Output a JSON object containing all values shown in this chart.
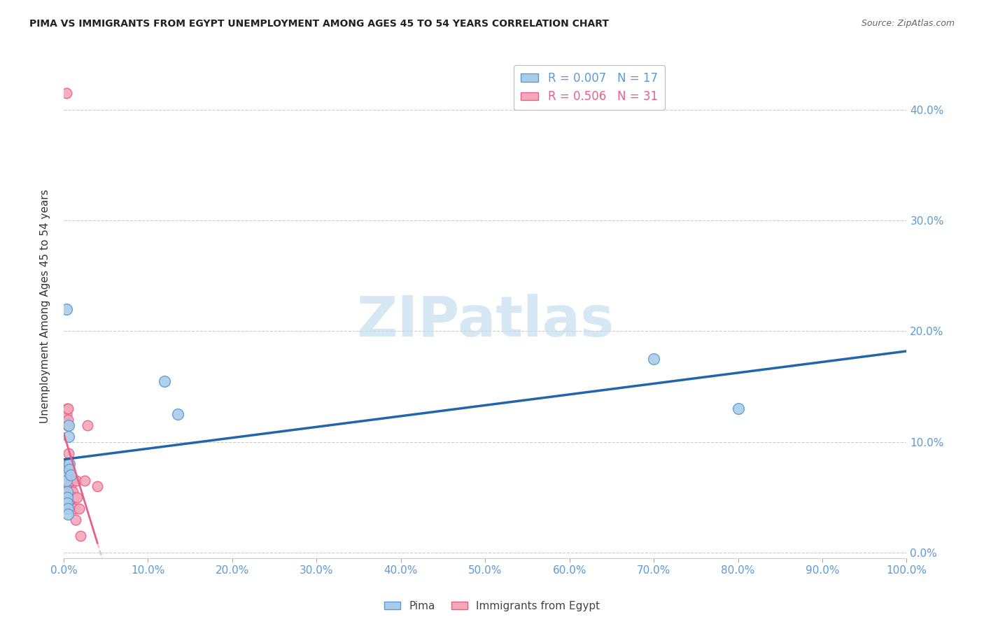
{
  "title": "PIMA VS IMMIGRANTS FROM EGYPT UNEMPLOYMENT AMONG AGES 45 TO 54 YEARS CORRELATION CHART",
  "source": "Source: ZipAtlas.com",
  "ylabel": "Unemployment Among Ages 45 to 54 years",
  "xlim": [
    0,
    1.0
  ],
  "ylim": [
    -0.005,
    0.45
  ],
  "xticks": [
    0.0,
    0.1,
    0.2,
    0.3,
    0.4,
    0.5,
    0.6,
    0.7,
    0.8,
    0.9,
    1.0
  ],
  "yticks": [
    0.0,
    0.1,
    0.2,
    0.3,
    0.4
  ],
  "pima_R": 0.007,
  "pima_N": 17,
  "egypt_R": 0.506,
  "egypt_N": 31,
  "pima_color": "#aacce8",
  "egypt_color": "#f4a8b8",
  "pima_edge_color": "#5b9bd5",
  "egypt_edge_color": "#e8608a",
  "pima_points_x": [
    0.003,
    0.003,
    0.003,
    0.004,
    0.004,
    0.004,
    0.005,
    0.005,
    0.006,
    0.006,
    0.007,
    0.007,
    0.008,
    0.12,
    0.135,
    0.7,
    0.8
  ],
  "pima_points_y": [
    0.22,
    0.07,
    0.065,
    0.055,
    0.05,
    0.045,
    0.04,
    0.035,
    0.115,
    0.105,
    0.08,
    0.075,
    0.07,
    0.155,
    0.125,
    0.175,
    0.13
  ],
  "egypt_points_x": [
    0.003,
    0.003,
    0.003,
    0.004,
    0.004,
    0.005,
    0.005,
    0.006,
    0.006,
    0.006,
    0.006,
    0.007,
    0.007,
    0.007,
    0.008,
    0.008,
    0.009,
    0.009,
    0.01,
    0.01,
    0.011,
    0.012,
    0.013,
    0.014,
    0.015,
    0.016,
    0.018,
    0.02,
    0.025,
    0.028,
    0.04
  ],
  "egypt_points_y": [
    0.415,
    0.125,
    0.08,
    0.13,
    0.115,
    0.13,
    0.12,
    0.09,
    0.08,
    0.07,
    0.06,
    0.065,
    0.055,
    0.045,
    0.07,
    0.06,
    0.065,
    0.055,
    0.05,
    0.04,
    0.055,
    0.05,
    0.04,
    0.03,
    0.065,
    0.05,
    0.04,
    0.015,
    0.065,
    0.115,
    0.06
  ],
  "pima_line_color": "#2166ac",
  "egypt_line_color": "#e8608a",
  "egypt_line_solid_end": 0.04,
  "egypt_line_dashed_end": 0.22,
  "watermark_text": "ZIPatlas",
  "watermark_color": "#c5dff0",
  "background_color": "#ffffff",
  "grid_color": "#cccccc",
  "tick_label_color": "#5b9bd5",
  "title_color": "#222222",
  "source_color": "#666666",
  "ylabel_color": "#333333"
}
